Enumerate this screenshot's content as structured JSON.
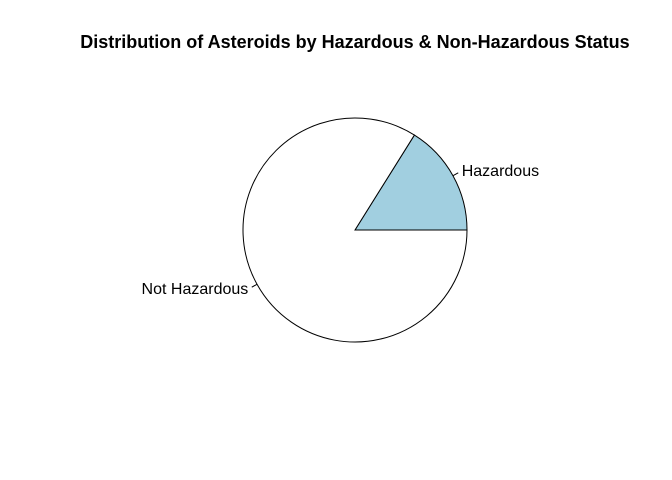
{
  "chart_data": {
    "type": "pie",
    "title": "Distribution of Asteroids by Hazardous & Non-Hazardous Status",
    "slices": [
      {
        "label": "Hazardous",
        "value": 16.1,
        "color": "#a1cfe0"
      },
      {
        "label": "Not Hazardous",
        "value": 83.9,
        "color": "#ffffff"
      }
    ],
    "stroke_color": "#000000",
    "start_angle_deg": 0,
    "direction": "counterclockwise",
    "legend": "none"
  }
}
